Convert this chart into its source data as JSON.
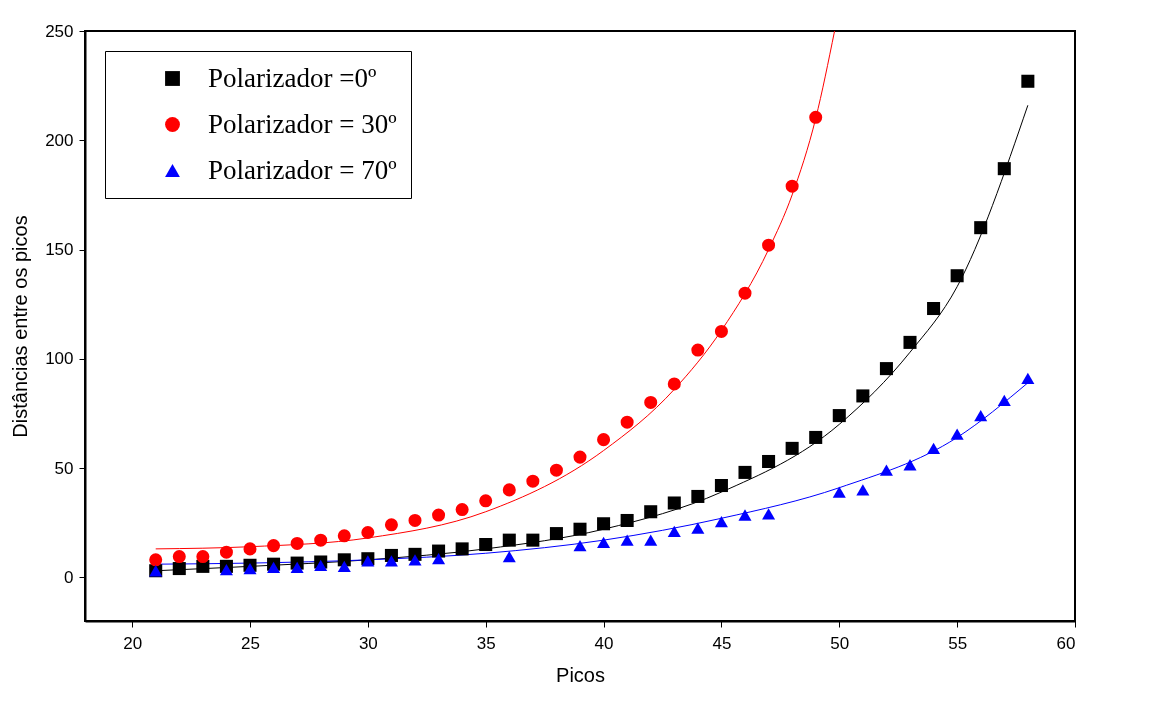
{
  "chart_data": {
    "type": "scatter",
    "xlabel": "Picos",
    "ylabel": "Distâncias entre os picos",
    "xlim": [
      18,
      60
    ],
    "xticks": [
      20,
      25,
      30,
      35,
      40,
      45,
      50,
      55,
      60
    ],
    "ylim": [
      -20,
      250
    ],
    "yticks": [
      0,
      50,
      100,
      150,
      200,
      250
    ],
    "grid": false,
    "legend": "top left",
    "series": [
      {
        "name": "Polarizador =0º",
        "marker": "square",
        "color": "#000000",
        "x": [
          21,
          22,
          23,
          24,
          25,
          26,
          27,
          28,
          29,
          30,
          31,
          32,
          33,
          34,
          35,
          36,
          37,
          38,
          39,
          40,
          41,
          42,
          43,
          44,
          45,
          46,
          47,
          48,
          49,
          50,
          51,
          52,
          53,
          54,
          55,
          56,
          57,
          58
        ],
        "values": [
          3,
          4,
          5,
          5,
          5.5,
          6,
          6.5,
          7,
          8,
          8.5,
          10,
          10.5,
          12,
          13,
          15,
          17,
          17,
          20,
          22,
          24.5,
          26,
          30,
          34,
          37,
          42,
          48,
          53,
          59,
          64,
          74,
          83,
          95.5,
          107.5,
          123,
          138,
          160,
          187,
          227
        ]
      },
      {
        "name": "Polarizador = 30º",
        "marker": "circle",
        "color": "#ff0000",
        "x": [
          21,
          22,
          23,
          24,
          25,
          26,
          27,
          28,
          29,
          30,
          31,
          32,
          33,
          34,
          35,
          36,
          37,
          38,
          39,
          40,
          41,
          42,
          43,
          44,
          45,
          46,
          47,
          48,
          49
        ],
        "values": [
          8,
          9.5,
          9.5,
          11.5,
          13,
          14.5,
          15.5,
          17,
          19,
          20.5,
          24,
          26,
          28.5,
          31,
          35,
          40,
          44,
          49,
          55,
          63,
          71,
          80,
          88.5,
          104,
          112.5,
          130,
          152,
          179,
          210.5
        ]
      },
      {
        "name": "Polarizador = 70º",
        "marker": "triangle",
        "color": "#0000ff",
        "x": [
          21,
          24,
          25,
          26,
          27,
          28,
          29,
          30,
          31,
          32,
          33,
          36,
          39,
          40,
          41,
          42,
          43,
          44,
          45,
          46,
          47,
          50,
          51,
          52,
          53,
          54,
          55,
          56,
          57,
          58
        ],
        "values": [
          3,
          3.5,
          4,
          4.5,
          4.5,
          5.5,
          5,
          7.5,
          7.5,
          8,
          8.5,
          9.5,
          14.5,
          16,
          17,
          17,
          21,
          22.5,
          25.5,
          28.5,
          29,
          39,
          40,
          49,
          51.5,
          59,
          65.5,
          74,
          81,
          91
        ]
      },
      {
        "type": "line",
        "color": "#000000",
        "x": [
          21,
          25,
          30,
          35,
          40,
          45,
          50,
          53,
          55,
          58
        ],
        "values": [
          3,
          5,
          8,
          13,
          22,
          39,
          70,
          103,
          133,
          216
        ]
      },
      {
        "type": "line",
        "color": "#ff0000",
        "x": [
          21,
          25,
          30,
          35,
          40,
          43,
          45,
          47,
          48,
          49,
          49.8
        ],
        "values": [
          13,
          14,
          18,
          30,
          58,
          86,
          113,
          150,
          175,
          210,
          250
        ]
      },
      {
        "type": "line",
        "color": "#0000ff",
        "x": [
          21,
          25,
          30,
          35,
          40,
          45,
          50,
          55,
          58
        ],
        "values": [
          6,
          6.5,
          8,
          11,
          17,
          27,
          41,
          64,
          89
        ]
      }
    ]
  }
}
